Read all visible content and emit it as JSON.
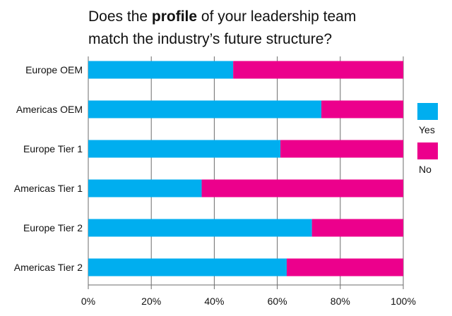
{
  "chart_data": {
    "type": "bar",
    "orientation": "horizontal",
    "stacked": true,
    "title": {
      "line1_before": "Does the ",
      "line1_bold": "profile",
      "line1_after": " of your leadership team",
      "line2": "match the industry’s future structure?"
    },
    "categories": [
      "Europe OEM",
      "Americas OEM",
      "Europe Tier 1",
      "Americas Tier 1",
      "Europe Tier 2",
      "Americas Tier 2"
    ],
    "series": [
      {
        "name": "Yes",
        "color": "#00AEEF",
        "values": [
          46,
          74,
          61,
          36,
          71,
          63
        ]
      },
      {
        "name": "No",
        "color": "#EC008C",
        "values": [
          54,
          26,
          39,
          64,
          29,
          37
        ]
      }
    ],
    "xlim": [
      0,
      100
    ],
    "x_ticks": [
      "0%",
      "20%",
      "40%",
      "60%",
      "80%",
      "100%"
    ],
    "grid": "vertical",
    "legend_position": "right"
  }
}
